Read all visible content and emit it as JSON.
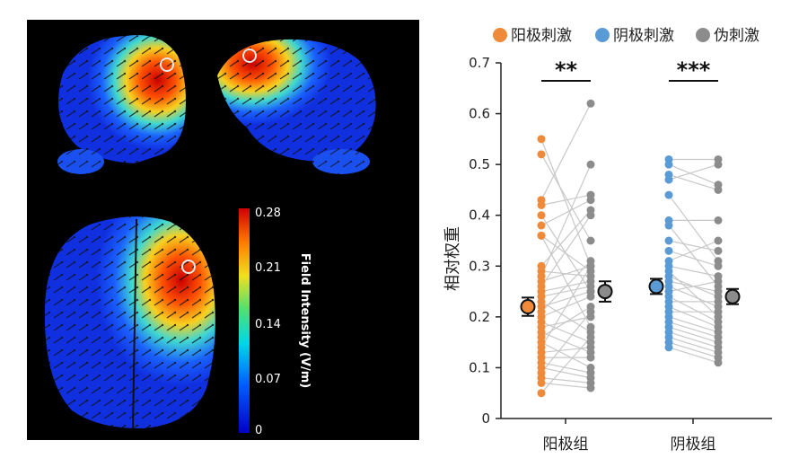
{
  "colorbar": {
    "title": "Field Intensity (V/m)",
    "ticks": [
      "0.28",
      "0.21",
      "0.14",
      "0.07",
      "0"
    ]
  },
  "colors": {
    "anodal": "#ee8a3a",
    "cathodal": "#5b9bd5",
    "sham": "#8c8c8c",
    "line": "#c8c8c8"
  },
  "chart_data": {
    "type": "scatter",
    "ylabel": "相对权重",
    "ylim": [
      0,
      0.7
    ],
    "yticks": [
      "0",
      "0.1",
      "0.2",
      "0.3",
      "0.4",
      "0.5",
      "0.6",
      "0.7"
    ],
    "categories": [
      "阳极组",
      "阴极组"
    ],
    "legend": [
      "阳极刺激",
      "阴极刺激",
      "伪刺激"
    ],
    "legend_position": "top",
    "significance": [
      "**",
      "***"
    ],
    "groups": [
      {
        "category": "阳极组",
        "conditions": [
          "阳极刺激",
          "伪刺激"
        ],
        "pre": [
          0.55,
          0.52,
          0.43,
          0.42,
          0.4,
          0.38,
          0.36,
          0.36,
          0.3,
          0.29,
          0.28,
          0.27,
          0.26,
          0.25,
          0.24,
          0.23,
          0.22,
          0.21,
          0.2,
          0.19,
          0.18,
          0.17,
          0.16,
          0.15,
          0.14,
          0.13,
          0.12,
          0.11,
          0.1,
          0.09,
          0.08,
          0.07,
          0.05
        ],
        "post": [
          0.3,
          0.35,
          0.62,
          0.44,
          0.25,
          0.43,
          0.29,
          0.18,
          0.41,
          0.28,
          0.5,
          0.3,
          0.4,
          0.27,
          0.26,
          0.17,
          0.25,
          0.31,
          0.24,
          0.15,
          0.2,
          0.13,
          0.22,
          0.1,
          0.3,
          0.14,
          0.12,
          0.09,
          0.08,
          0.21,
          0.07,
          0.06,
          0.16
        ],
        "mean": [
          0.22,
          0.25
        ],
        "sem": [
          0.018,
          0.02
        ]
      },
      {
        "category": "阴极组",
        "conditions": [
          "阴极刺激",
          "伪刺激"
        ],
        "pre": [
          0.51,
          0.5,
          0.48,
          0.47,
          0.44,
          0.39,
          0.38,
          0.35,
          0.33,
          0.31,
          0.3,
          0.29,
          0.28,
          0.27,
          0.26,
          0.25,
          0.24,
          0.23,
          0.22,
          0.21,
          0.2,
          0.19,
          0.18,
          0.17,
          0.16,
          0.15,
          0.14
        ],
        "post": [
          0.51,
          0.46,
          0.45,
          0.5,
          0.31,
          0.39,
          0.26,
          0.33,
          0.3,
          0.35,
          0.28,
          0.2,
          0.24,
          0.25,
          0.22,
          0.27,
          0.19,
          0.23,
          0.18,
          0.21,
          0.17,
          0.16,
          0.15,
          0.14,
          0.13,
          0.12,
          0.11
        ],
        "mean": [
          0.26,
          0.24
        ],
        "sem": [
          0.015,
          0.015
        ]
      }
    ]
  }
}
